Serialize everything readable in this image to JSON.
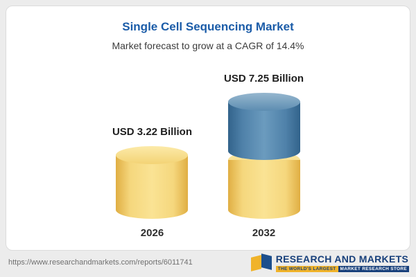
{
  "chart_data": {
    "type": "bar",
    "title": "Single Cell Sequencing Market",
    "subtitle": "Market forecast to grow at a CAGR of 14.4%",
    "cagr_percent": 14.4,
    "unit": "USD Billion",
    "categories": [
      "2026",
      "2032"
    ],
    "values": [
      3.22,
      7.25
    ],
    "value_labels": [
      "USD 3.22 Billion",
      "USD 7.25 Billion"
    ],
    "bar_style": "3d-cylinder",
    "bars": [
      {
        "year": "2026",
        "value": 3.22,
        "segments": [
          {
            "color": "#f2cf6e",
            "value": 3.22
          }
        ]
      },
      {
        "year": "2032",
        "value": 7.25,
        "segments": [
          {
            "color": "#f2cf6e",
            "value": 3.22
          },
          {
            "color": "#4d80a8",
            "value": 4.03
          }
        ]
      }
    ],
    "legend": "none",
    "gridlines": false,
    "ylim": [
      0,
      8
    ]
  },
  "footer": {
    "url": "https://www.researchandmarkets.com/reports/6011741",
    "logo_name": "RESEARCH AND MARKETS",
    "logo_tagline_left": "THE WORLD'S LARGEST",
    "logo_tagline_right": "MARKET RESEARCH STORE"
  },
  "colors": {
    "title_blue": "#1b5ca8",
    "bar_yellow": "#f2cf6e",
    "bar_blue": "#4d80a8",
    "logo_navy": "#173f7a",
    "logo_gold": "#f0b32a",
    "page_background": "#ececec",
    "card_background": "#ffffff"
  }
}
